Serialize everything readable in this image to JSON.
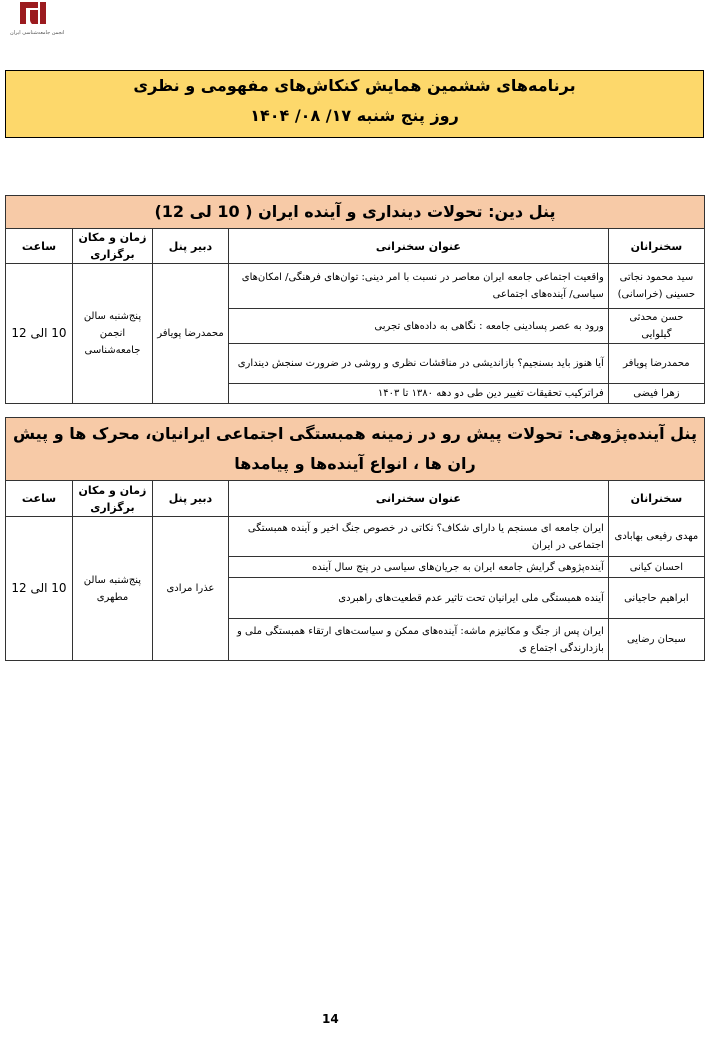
{
  "logo": {
    "text": "انجمن جامعه‌شناسی ایران",
    "color": "#9b1b1f"
  },
  "header": {
    "line1": "برنامه‌های ششمین همایش کنکاش‌های مفهومی و نظری",
    "line2": "روز پنج شنبه ۱۷/ ۰۸/ ۱۴۰۴",
    "background": "#fdd86b"
  },
  "columns": {
    "speakers": "سخنرانان",
    "talk": "عنوان سخنرانی",
    "chair": "دبیر پنل",
    "venue": "زمان و مکان برگزاری",
    "time": "ساعت"
  },
  "panels": [
    {
      "title": "پنل دین:  تحولات دینداری و آینده ایران ( 10 لی 12)",
      "chair": "محمدرضا پویافر",
      "venue": "پنج‌شنبه سالن انجمن جامعه‌شناسی",
      "time": "10 الی 12",
      "rows": [
        {
          "speaker": "سید محمود نجاتی حسینی (خراسانی)",
          "talk": "واقعیت اجتماعی جامعه ایران معاصر در نسبت با امر دینی: توان‌های فرهنگی/ امکان‌های سیاسی/ آینده‌های اجتماعی"
        },
        {
          "speaker": "حسن محدثی گیلوایی",
          "talk": "ورود به عصر پسادینی جامعه : نگاهی به داده‌های تجربی"
        },
        {
          "speaker": "محمدرضا پویافر",
          "talk": "آیا هنوز باید بسنجیم؟ بازاندیشی در مناقشات نظری و روشی در ضرورت سنجش دینداری"
        },
        {
          "speaker": "زهرا فیضی",
          "talk": "فراترکیب تحقیقات تغییر دین طی دو دهه ۱۳۸۰ تا ۱۴۰۳"
        }
      ]
    },
    {
      "title": "پنل آینده‌پژوهی:  تحولات پیش رو در زمینه همبستگی اجتماعی ایرانیان، محرک ها و پیش ران ها ، انواع آینده‌ها و پیامدها",
      "chair": "عذرا مرادی",
      "venue": "پنج‌شنبه سالن مطهری",
      "time": "10 الی 12",
      "rows": [
        {
          "speaker": "مهدی رفیعی بهابادی",
          "talk": "ایران جامعه ای مسنجم یا دارای شکاف؟ نکاتی در خصوص جنگ اخیر و آینده همبستگی اجتماعی در ایران"
        },
        {
          "speaker": "احسان کیانی",
          "talk": "آینده‌پژوهی گرایش جامعه ایران به جریان‌های سیاسی در پنج سال آینده"
        },
        {
          "speaker": "ابراهیم حاجیانی",
          "talk": "آینده همبستگی ملی ایرانیان تحت تاثیر عدم قطعیت‌های راهبردی"
        },
        {
          "speaker": "سبحان رضایی",
          "talk": "ایران پس از جنگ و مکانیزم ماشه: آینده‌های ممکن و سیاست‌های ارتقاء  همبستگی ملی و بازدارندگی اجتماع ی"
        }
      ]
    }
  ],
  "panel_title_background": "#f7caa7",
  "page_number": "14"
}
